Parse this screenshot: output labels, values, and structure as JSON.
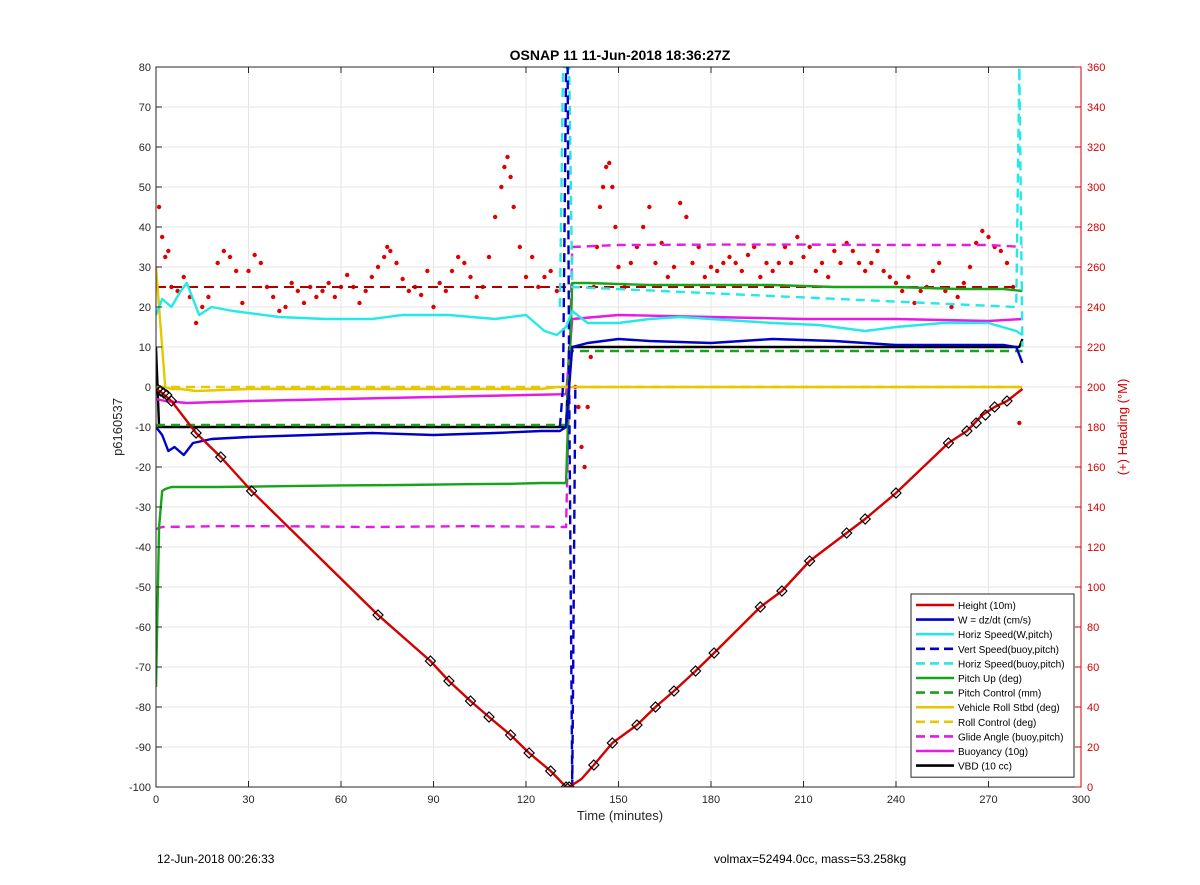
{
  "footer": {
    "timestamp": "12-Jun-2018 00:26:33",
    "vehicle_info": "volmax=52494.0cc, mass=53.258kg"
  },
  "chart_data": {
    "type": "line",
    "title": "OSNAP 11 11-Jun-2018 18:36:27Z",
    "xlabel": "Time (minutes)",
    "ylabel": "p6160537",
    "y2label": "(+) Heading (°M)",
    "xlim": [
      0,
      300
    ],
    "ylim": [
      -100,
      80
    ],
    "y2lim": [
      0,
      360
    ],
    "x_ticks": [
      0,
      30,
      60,
      90,
      120,
      150,
      180,
      210,
      240,
      270,
      300
    ],
    "y_ticks": [
      80,
      70,
      60,
      50,
      40,
      30,
      20,
      10,
      0,
      -10,
      -20,
      -30,
      -40,
      -50,
      -60,
      -70,
      -80,
      -90,
      -100
    ],
    "y2_ticks": [
      360,
      340,
      320,
      300,
      280,
      260,
      240,
      220,
      200,
      180,
      160,
      140,
      120,
      100,
      80,
      60,
      40,
      20,
      0
    ],
    "grid": true,
    "legend_position": "bottom-right",
    "colors": {
      "height": "#d40000",
      "w": "#0000c8",
      "horiz": "#25e8e8",
      "pitch": "#18a418",
      "roll": "#e6c800",
      "glide": "#e619e6",
      "buoyancy": "#e619e6",
      "vbd": "#000000",
      "heading": "#e00000",
      "right_axis": "#d40000"
    },
    "series": [
      {
        "name": "Height (10m)",
        "style": "solid",
        "color": "#d40000",
        "x": [
          0,
          2,
          5,
          13,
          21,
          31,
          72,
          89,
          95,
          102,
          108,
          115,
          121,
          128,
          133,
          134,
          138,
          142,
          148,
          156,
          162,
          168,
          175,
          181,
          196,
          203,
          212,
          224,
          230,
          240,
          257,
          263,
          268,
          272,
          276,
          281
        ],
        "y": [
          -0.5,
          -1.5,
          -3.5,
          -11.5,
          -17.5,
          -26,
          -57,
          -68.5,
          -73.5,
          -78.5,
          -82.5,
          -87,
          -91.5,
          -96,
          -100,
          -100,
          -98,
          -94.5,
          -89,
          -84.5,
          -80,
          -76,
          -71,
          -66.5,
          -55,
          -51,
          -43.5,
          -36.5,
          -33,
          -26.5,
          -14,
          -11,
          -7,
          -5,
          -3.5,
          -0.5
        ]
      },
      {
        "name": "W = dz/dt (cm/s)",
        "style": "solid",
        "color": "#0000c8",
        "x": [
          0,
          2,
          4,
          6,
          9,
          12,
          18,
          30,
          50,
          70,
          90,
          110,
          125,
          131,
          133,
          135,
          140,
          150,
          160,
          180,
          200,
          220,
          240,
          260,
          275,
          279,
          281
        ],
        "y": [
          -10,
          -12,
          -16,
          -15,
          -17,
          -14,
          -13,
          -12.5,
          -12,
          -11.5,
          -12,
          -11.5,
          -11,
          -11,
          -10,
          10,
          11,
          12,
          11.5,
          11,
          12,
          11.5,
          10.5,
          10.5,
          10.5,
          10,
          6
        ]
      },
      {
        "name": "Horiz Speed(W,pitch)",
        "style": "solid",
        "color": "#25e8e8",
        "x": [
          0,
          2,
          5,
          8,
          10,
          14,
          18,
          25,
          40,
          55,
          70,
          80,
          95,
          110,
          120,
          126,
          130,
          133,
          135,
          140,
          150,
          160,
          170,
          180,
          190,
          200,
          215,
          230,
          240,
          255,
          270,
          279,
          281
        ],
        "y": [
          18,
          22,
          20,
          24,
          26,
          18,
          20,
          19,
          17.5,
          17,
          17,
          18,
          18,
          17,
          18,
          14,
          13,
          15,
          19,
          16,
          16,
          17,
          17.5,
          17,
          16.5,
          16,
          15.5,
          14,
          15,
          16,
          16,
          14,
          13
        ]
      },
      {
        "name": "Vert Speed(buoy,pitch)",
        "style": "dashed",
        "color": "#0000c8",
        "x": [
          131,
          132,
          133,
          133.5,
          134,
          135,
          136
        ],
        "y": [
          -10,
          0,
          80,
          80,
          0,
          -100,
          0
        ]
      },
      {
        "name": "Horiz Speed(buoy,pitch)",
        "style": "dashed",
        "color": "#25e8e8",
        "x": [
          131,
          132,
          133,
          134,
          135,
          279,
          280,
          281
        ],
        "y": [
          20,
          80,
          80,
          80,
          25,
          20,
          80,
          10
        ]
      },
      {
        "name": "Pitch Up (deg)",
        "style": "solid",
        "color": "#18a418",
        "x": [
          0,
          1,
          2,
          3,
          5,
          20,
          40,
          60,
          80,
          100,
          115,
          125,
          133,
          135,
          140,
          160,
          180,
          200,
          220,
          240,
          260,
          275,
          281
        ],
        "y": [
          -75,
          -35,
          -26,
          -25.5,
          -25,
          -25,
          -24.8,
          -24.6,
          -24.5,
          -24.3,
          -24.2,
          -24,
          -24,
          26,
          26,
          25.5,
          25.5,
          25.5,
          25,
          25,
          24.5,
          24.5,
          24
        ]
      },
      {
        "name": "Pitch Control (mm)",
        "style": "dashed",
        "color": "#18a418",
        "x": [
          0,
          133,
          134,
          281
        ],
        "y": [
          -9.5,
          -9.5,
          9,
          9
        ]
      },
      {
        "name": "Vehicle Roll Stbd (deg)",
        "style": "solid",
        "color": "#e6c800",
        "x": [
          0,
          3,
          5,
          8,
          13,
          30,
          60,
          90,
          110,
          125,
          130,
          133,
          136,
          150,
          180,
          210,
          240,
          270,
          281
        ],
        "y": [
          30,
          0,
          -0.5,
          -0.5,
          -1,
          -0.5,
          -0.5,
          -0.5,
          -0.5,
          -0.5,
          0,
          0,
          0,
          0,
          0,
          0,
          0,
          0,
          0
        ]
      },
      {
        "name": "Roll Control (deg)",
        "style": "dashed",
        "color": "#e6c800",
        "x": [
          0,
          133,
          134,
          281
        ],
        "y": [
          0,
          0,
          0,
          0
        ]
      },
      {
        "name": "Glide Angle (buoy,pitch)",
        "style": "dashed",
        "color": "#e619e6",
        "x": [
          0,
          2,
          20,
          40,
          70,
          100,
          125,
          133,
          135,
          150,
          180,
          210,
          240,
          270,
          281
        ],
        "y": [
          -35.5,
          -35,
          -34.8,
          -34.8,
          -35,
          -34.8,
          -34.9,
          -35,
          35,
          35.5,
          35.6,
          35.6,
          35.5,
          35.5,
          35
        ]
      },
      {
        "name": "Buoyancy (10g)",
        "style": "solid",
        "color": "#e619e6",
        "x": [
          0,
          3,
          10,
          30,
          60,
          90,
          120,
          133,
          135,
          150,
          180,
          210,
          240,
          270,
          281
        ],
        "y": [
          -3,
          -3.5,
          -4,
          -3.5,
          -3,
          -2.5,
          -2,
          -1.8,
          17,
          18,
          17.5,
          17,
          17,
          16.5,
          17
        ]
      },
      {
        "name": "VBD (10 cc)",
        "style": "solid",
        "color": "#000000",
        "x": [
          0,
          0.5,
          1,
          133,
          134,
          280,
          281
        ],
        "y": [
          10,
          0,
          -10,
          -10,
          10,
          10,
          12
        ]
      }
    ],
    "heading_scatter": {
      "name": "Heading",
      "axis": "right",
      "color": "#e00000",
      "x": [
        1,
        2,
        3,
        4,
        5,
        7,
        9,
        11,
        13,
        15,
        17,
        20,
        22,
        24,
        26,
        28,
        30,
        32,
        34,
        36,
        38,
        40,
        42,
        44,
        46,
        48,
        50,
        52,
        54,
        56,
        58,
        60,
        62,
        64,
        66,
        68,
        70,
        72,
        74,
        75,
        76,
        78,
        80,
        82,
        84,
        86,
        88,
        90,
        92,
        94,
        96,
        98,
        100,
        102,
        104,
        106,
        108,
        110,
        112,
        113,
        114,
        115,
        116,
        118,
        120,
        122,
        124,
        126,
        128,
        130,
        136,
        137,
        138,
        139,
        140,
        141,
        142,
        143,
        144,
        145,
        146,
        147,
        148,
        149,
        150,
        152,
        154,
        156,
        158,
        160,
        162,
        164,
        166,
        168,
        170,
        172,
        174,
        176,
        178,
        180,
        182,
        184,
        186,
        188,
        190,
        192,
        194,
        196,
        198,
        200,
        202,
        204,
        206,
        208,
        210,
        212,
        214,
        216,
        218,
        220,
        222,
        224,
        226,
        228,
        230,
        232,
        234,
        236,
        238,
        240,
        242,
        244,
        246,
        248,
        250,
        252,
        254,
        256,
        258,
        260,
        262,
        264,
        266,
        268,
        270,
        272,
        274,
        276,
        278,
        280
      ],
      "y": [
        290,
        275,
        265,
        268,
        250,
        248,
        255,
        245,
        232,
        240,
        245,
        262,
        268,
        265,
        258,
        242,
        258,
        266,
        262,
        250,
        245,
        238,
        240,
        252,
        248,
        242,
        250,
        245,
        248,
        252,
        245,
        250,
        256,
        250,
        242,
        248,
        255,
        260,
        265,
        270,
        268,
        262,
        254,
        248,
        250,
        246,
        258,
        240,
        252,
        248,
        258,
        265,
        262,
        255,
        245,
        250,
        265,
        285,
        300,
        310,
        315,
        305,
        290,
        270,
        255,
        265,
        250,
        255,
        258,
        248,
        200,
        190,
        170,
        160,
        190,
        215,
        250,
        270,
        290,
        300,
        310,
        312,
        300,
        280,
        260,
        250,
        262,
        270,
        280,
        290,
        262,
        272,
        255,
        260,
        292,
        285,
        262,
        270,
        255,
        260,
        258,
        262,
        265,
        262,
        258,
        266,
        270,
        255,
        262,
        258,
        262,
        270,
        262,
        275,
        265,
        270,
        258,
        262,
        255,
        268,
        262,
        272,
        268,
        262,
        258,
        262,
        268,
        258,
        255,
        252,
        248,
        255,
        242,
        248,
        250,
        258,
        262,
        248,
        240,
        245,
        252,
        260,
        272,
        278,
        275,
        270,
        268,
        262,
        250,
        182
      ]
    },
    "waypoint_markers": {
      "x": [
        0.5,
        1.5,
        2.5,
        3.5,
        5,
        13,
        21,
        31,
        72,
        89,
        95,
        102,
        108,
        115,
        121,
        128,
        133,
        134,
        142,
        148,
        156,
        162,
        168,
        175,
        181,
        196,
        203,
        212,
        224,
        230,
        240,
        257,
        263,
        266,
        269,
        272,
        276
      ],
      "y": [
        -0.5,
        -1,
        -1.5,
        -2,
        -3.5,
        -11.5,
        -17.5,
        -26,
        -57,
        -68.5,
        -73.5,
        -78.5,
        -82.5,
        -87,
        -91.5,
        -96,
        -100,
        -100,
        -94.5,
        -89,
        -84.5,
        -80,
        -76,
        -71,
        -66.5,
        -55,
        -51,
        -43.5,
        -36.5,
        -33,
        -26.5,
        -14,
        -11,
        -9,
        -7,
        -5,
        -3.5
      ]
    }
  }
}
